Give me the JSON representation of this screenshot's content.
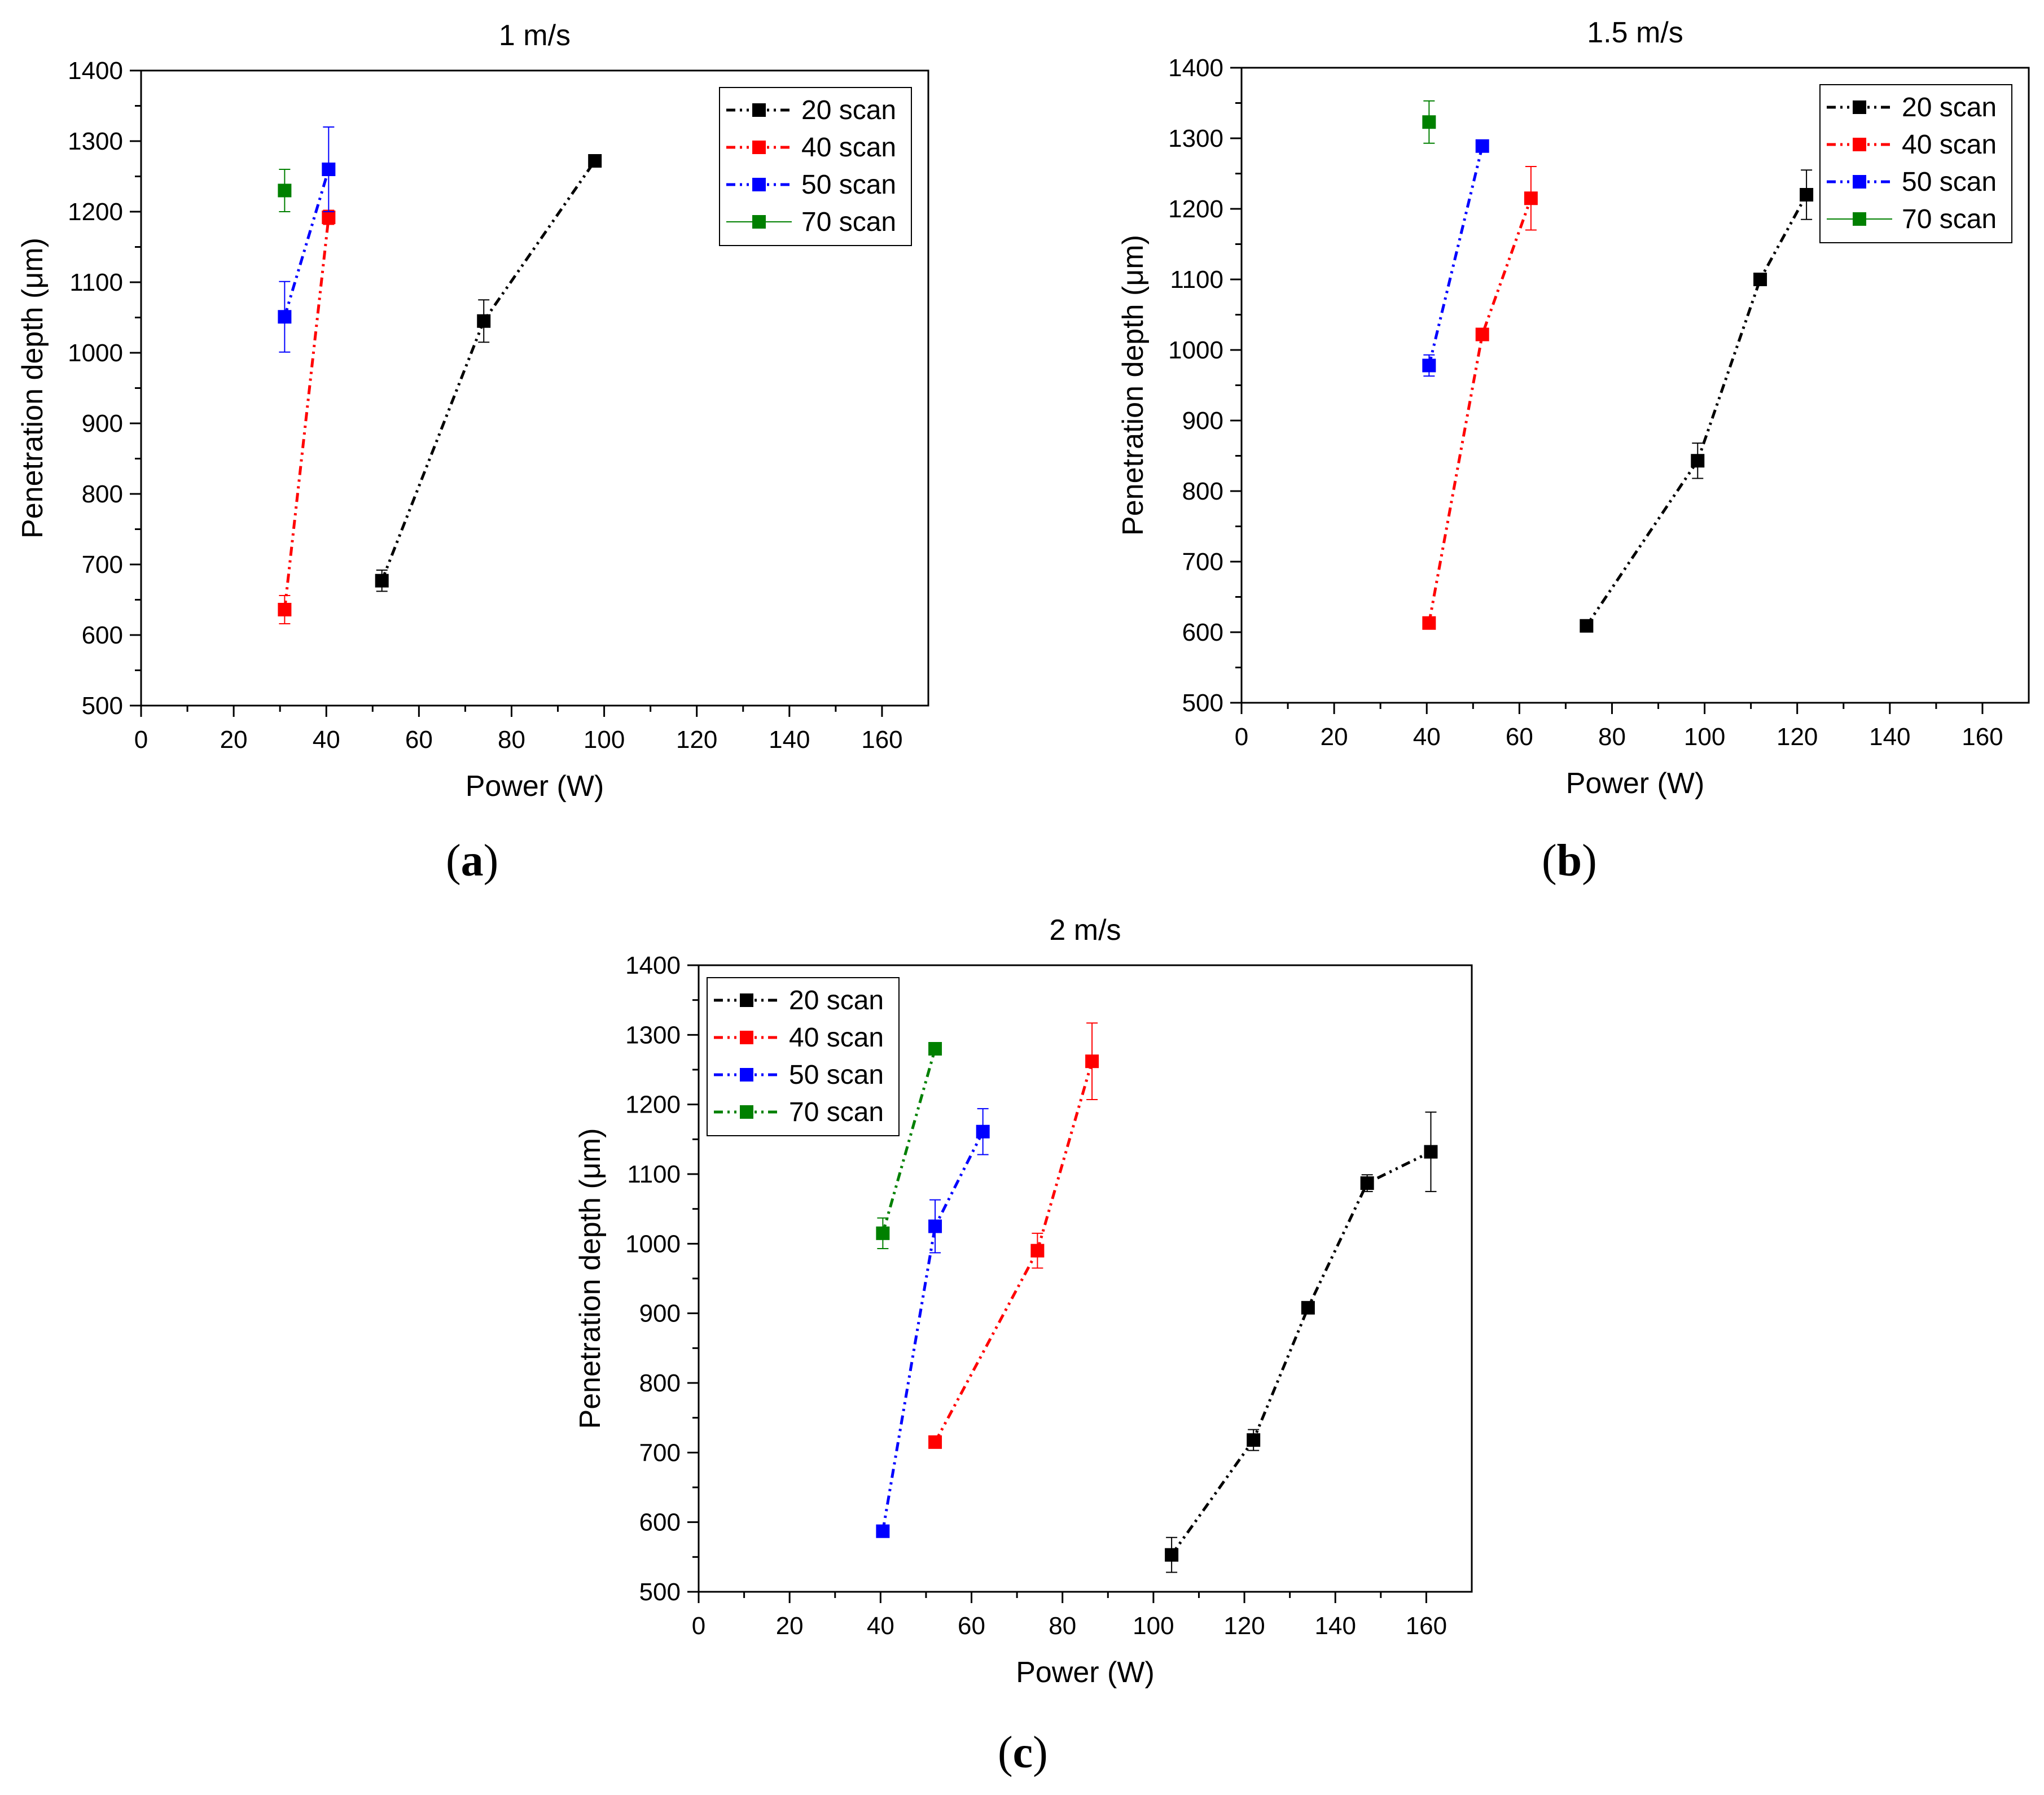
{
  "chart_data": [
    {
      "type": "line",
      "panel": "a",
      "panel_label": "a",
      "title": "1 m/s",
      "xlabel": "Power (W)",
      "ylabel": "Penetration depth (μm)",
      "xlim": [
        0,
        170
      ],
      "ylim": [
        500,
        1400
      ],
      "xticks": [
        0,
        20,
        40,
        60,
        80,
        100,
        120,
        140,
        160
      ],
      "yticks": [
        500,
        600,
        700,
        800,
        900,
        1000,
        1100,
        1200,
        1300,
        1400
      ],
      "legend_position": "top-right",
      "series": [
        {
          "name": "20 scan",
          "color": "#000000",
          "dashed": true,
          "x": [
            52,
            74,
            98
          ],
          "y": [
            677,
            1045,
            1272
          ],
          "err": [
            15,
            30,
            0
          ]
        },
        {
          "name": "40 scan",
          "color": "#ff0000",
          "dashed": true,
          "x": [
            31,
            40.5
          ],
          "y": [
            636,
            1192
          ],
          "err": [
            20,
            10
          ]
        },
        {
          "name": "50 scan",
          "color": "#0000ff",
          "dashed": true,
          "x": [
            31,
            40.5
          ],
          "y": [
            1051,
            1260
          ],
          "err": [
            50,
            60
          ]
        },
        {
          "name": "70 scan",
          "color": "#008000",
          "dashed": false,
          "x": [
            31
          ],
          "y": [
            1230
          ],
          "err": [
            30
          ]
        }
      ]
    },
    {
      "type": "line",
      "panel": "b",
      "panel_label": "b",
      "title": "1.5 m/s",
      "xlabel": "Power (W)",
      "ylabel": "Penetration depth (μm)",
      "xlim": [
        0,
        170
      ],
      "ylim": [
        500,
        1400
      ],
      "xticks": [
        0,
        20,
        40,
        60,
        80,
        100,
        120,
        140,
        160
      ],
      "yticks": [
        500,
        600,
        700,
        800,
        900,
        1000,
        1100,
        1200,
        1300,
        1400
      ],
      "legend_position": "top-right",
      "series": [
        {
          "name": "20 scan",
          "color": "#000000",
          "dashed": true,
          "x": [
            74.5,
            98.5,
            112,
            122
          ],
          "y": [
            609,
            843,
            1100,
            1220
          ],
          "err": [
            0,
            25,
            0,
            35
          ]
        },
        {
          "name": "40 scan",
          "color": "#ff0000",
          "dashed": true,
          "x": [
            40.5,
            52,
            62.5
          ],
          "y": [
            613,
            1022,
            1215
          ],
          "err": [
            0,
            0,
            45
          ]
        },
        {
          "name": "50 scan",
          "color": "#0000ff",
          "dashed": true,
          "x": [
            40.5,
            52
          ],
          "y": [
            978,
            1289
          ],
          "err": [
            15,
            0
          ]
        },
        {
          "name": "70 scan",
          "color": "#008000",
          "dashed": false,
          "x": [
            40.5
          ],
          "y": [
            1323
          ],
          "err": [
            30
          ]
        }
      ]
    },
    {
      "type": "line",
      "panel": "c",
      "panel_label": "c",
      "title": "2 m/s",
      "xlabel": "Power (W)",
      "ylabel": "Penetration depth (μm)",
      "xlim": [
        0,
        170
      ],
      "ylim": [
        500,
        1400
      ],
      "xticks": [
        0,
        20,
        40,
        60,
        80,
        100,
        120,
        140,
        160
      ],
      "yticks": [
        500,
        600,
        700,
        800,
        900,
        1000,
        1100,
        1200,
        1300,
        1400
      ],
      "legend_position": "top-left",
      "series": [
        {
          "name": "20 scan",
          "color": "#000000",
          "dashed": true,
          "x": [
            104,
            122,
            134,
            147,
            161
          ],
          "y": [
            553,
            718,
            908,
            1087,
            1132
          ],
          "err": [
            25,
            15,
            0,
            12,
            57
          ]
        },
        {
          "name": "40 scan",
          "color": "#ff0000",
          "dashed": true,
          "x": [
            52,
            74.5,
            86.5
          ],
          "y": [
            715,
            990,
            1262
          ],
          "err": [
            0,
            25,
            55
          ]
        },
        {
          "name": "50 scan",
          "color": "#0000ff",
          "dashed": true,
          "x": [
            40.5,
            52,
            62.5
          ],
          "y": [
            587,
            1025,
            1161
          ],
          "err": [
            0,
            38,
            33
          ]
        },
        {
          "name": "70 scan",
          "color": "#008000",
          "dashed": true,
          "x": [
            40.5,
            52
          ],
          "y": [
            1015,
            1280
          ],
          "err": [
            22,
            0
          ]
        }
      ]
    }
  ]
}
